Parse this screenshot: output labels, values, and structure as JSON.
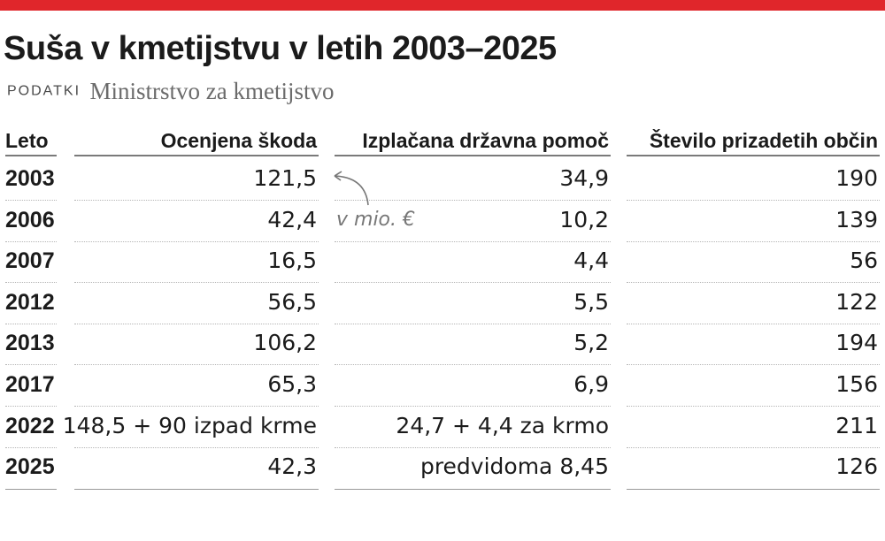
{
  "header": {
    "title": "Suša v kmetijstvu v letih 2003–2025",
    "source_label": "PODATKI",
    "source_text": "Ministrstvo za kmetijstvo"
  },
  "colors": {
    "accent": "#e0262b",
    "text": "#1b1b1b",
    "muted": "#777777"
  },
  "unit_note": "v mio. €",
  "chart_data": {
    "type": "table",
    "columns": [
      "Leto",
      "Ocenjena škoda",
      "Izplačana državna pomoč",
      "Število prizadetih občin"
    ],
    "rows": [
      [
        "2003",
        "121,5",
        "34,9",
        "190"
      ],
      [
        "2006",
        "42,4",
        "10,2",
        "139"
      ],
      [
        "2007",
        "16,5",
        "4,4",
        "56"
      ],
      [
        "2012",
        "56,5",
        "5,5",
        "122"
      ],
      [
        "2013",
        "106,2",
        "5,2",
        "194"
      ],
      [
        "2017",
        "65,3",
        "6,9",
        "156"
      ],
      [
        "2022",
        "148,5 + 90 izpad krme",
        "24,7 + 4,4 za krmo",
        "211"
      ],
      [
        "2025",
        "42,3",
        "predvidoma 8,45",
        "126"
      ]
    ]
  }
}
